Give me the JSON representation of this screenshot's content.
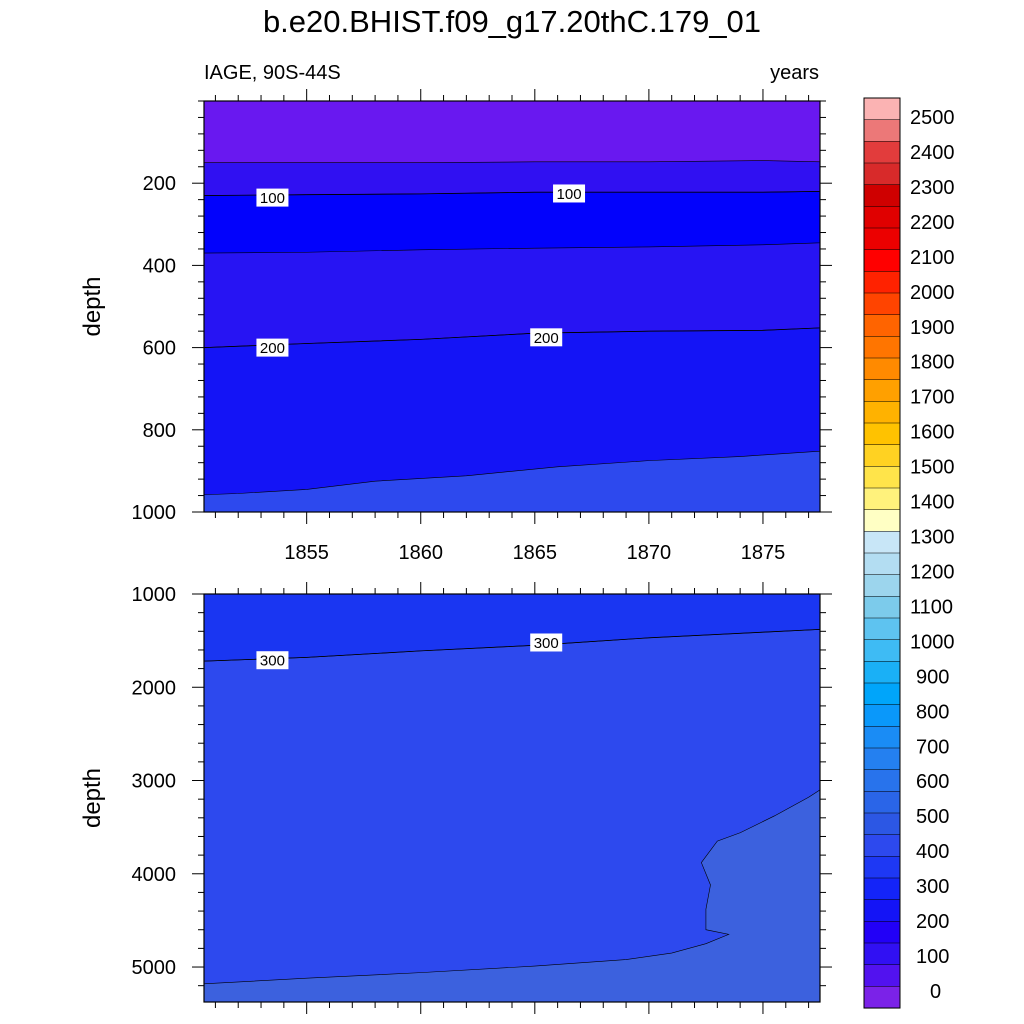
{
  "chart_data": {
    "type": "heatmap",
    "title": "b.e20.BHIST.f09_g17.20thC.179_01",
    "subtitle_left": "IAGE, 90S-44S",
    "subtitle_right": "years",
    "xlabel": "",
    "ylabel": "depth",
    "x_range": [
      1850.5,
      1877.5
    ],
    "x_ticks": [
      1855,
      1860,
      1865,
      1870,
      1875
    ],
    "x_tick_labels": [
      "1855",
      "1860",
      "1865",
      "1870",
      "1875"
    ],
    "panels": [
      {
        "name": "upper",
        "y_range": [
          0,
          1000
        ],
        "y_reversed": true,
        "y_ticks": [
          200,
          400,
          600,
          800,
          1000
        ],
        "y_tick_labels": [
          "200",
          "400",
          "600",
          "800",
          "1000"
        ],
        "background_color": "#2D49EE",
        "filled_bands": [
          {
            "color": "#1414F6",
            "top": [
              [
                1850.5,
                0
              ],
              [
                1877.5,
                0
              ]
            ],
            "bottom": [
              [
                1850.5,
                958
              ],
              [
                1852,
                955
              ],
              [
                1855,
                945
              ],
              [
                1858,
                925
              ],
              [
                1862,
                912
              ],
              [
                1866,
                890
              ],
              [
                1870,
                875
              ],
              [
                1874,
                865
              ],
              [
                1877.5,
                852
              ]
            ]
          },
          {
            "color": "#2714F3",
            "top": [
              [
                1850.5,
                0
              ],
              [
                1877.5,
                0
              ]
            ],
            "bottom": [
              [
                1850.5,
                600
              ],
              [
                1855,
                590
              ],
              [
                1860,
                580
              ],
              [
                1865,
                565
              ],
              [
                1870,
                560
              ],
              [
                1875,
                558
              ],
              [
                1877.5,
                552
              ]
            ]
          },
          {
            "color": "#0202FC",
            "top": [
              [
                1850.5,
                0
              ],
              [
                1877.5,
                0
              ]
            ],
            "bottom": [
              [
                1850.5,
                370
              ],
              [
                1855,
                368
              ],
              [
                1860,
                362
              ],
              [
                1865,
                358
              ],
              [
                1870,
                355
              ],
              [
                1875,
                350
              ],
              [
                1877.5,
                345
              ]
            ]
          },
          {
            "color": "#3010F2",
            "top": [
              [
                1850.5,
                0
              ],
              [
                1877.5,
                0
              ]
            ],
            "bottom": [
              [
                1850.5,
                230
              ],
              [
                1855,
                228
              ],
              [
                1860,
                226
              ],
              [
                1865,
                222
              ],
              [
                1870,
                222
              ],
              [
                1875,
                222
              ],
              [
                1877.5,
                220
              ]
            ]
          },
          {
            "color": "#6918F0",
            "top": [
              [
                1850.5,
                0
              ],
              [
                1877.5,
                0
              ]
            ],
            "bottom": [
              [
                1850.5,
                150
              ],
              [
                1855,
                150
              ],
              [
                1860,
                150
              ],
              [
                1865,
                148
              ],
              [
                1870,
                148
              ],
              [
                1875,
                145
              ],
              [
                1877.5,
                148
              ]
            ]
          }
        ],
        "contours": [
          {
            "value": 100,
            "label": "100",
            "points": [
              [
                1850.5,
                230
              ],
              [
                1855,
                228
              ],
              [
                1860,
                226
              ],
              [
                1865,
                222
              ],
              [
                1870,
                222
              ],
              [
                1875,
                222
              ],
              [
                1877.5,
                220
              ]
            ],
            "label_at": [
              [
                1853.5,
                235
              ],
              [
                1866.5,
                225
              ]
            ]
          },
          {
            "value": 200,
            "label": "200",
            "points": [
              [
                1850.5,
                600
              ],
              [
                1855,
                590
              ],
              [
                1860,
                580
              ],
              [
                1865,
                565
              ],
              [
                1870,
                560
              ],
              [
                1875,
                558
              ],
              [
                1877.5,
                552
              ]
            ],
            "label_at": [
              [
                1853.5,
                600
              ],
              [
                1865.5,
                575
              ]
            ]
          }
        ]
      },
      {
        "name": "lower",
        "y_range": [
          1000,
          5375
        ],
        "y_reversed": true,
        "y_ticks": [
          1000,
          2000,
          3000,
          4000,
          5000
        ],
        "y_tick_labels": [
          "1000",
          "2000",
          "3000",
          "4000",
          "5000"
        ],
        "background_color": "#3C61DE",
        "filled_bands": [
          {
            "color": "#2D49EE",
            "top": [
              [
                1850.5,
                1000
              ],
              [
                1877.5,
                1000
              ]
            ],
            "bottom": [
              [
                1850.5,
                5180
              ],
              [
                1855,
                5120
              ],
              [
                1860,
                5060
              ],
              [
                1865,
                4990
              ],
              [
                1869,
                4920
              ],
              [
                1871,
                4850
              ],
              [
                1872.5,
                4750
              ],
              [
                1873.5,
                4650
              ],
              [
                1872.5,
                4600
              ],
              [
                1872.5,
                4380
              ],
              [
                1872.7,
                4120
              ],
              [
                1872.3,
                3880
              ],
              [
                1873,
                3650
              ],
              [
                1874,
                3560
              ],
              [
                1875.5,
                3380
              ],
              [
                1877,
                3180
              ],
              [
                1877.5,
                3100
              ]
            ]
          },
          {
            "color": "#1A36F2",
            "top": [
              [
                1850.5,
                1000
              ],
              [
                1877.5,
                1000
              ]
            ],
            "bottom": [
              [
                1850.5,
                1720
              ],
              [
                1855,
                1680
              ],
              [
                1860,
                1610
              ],
              [
                1865,
                1550
              ],
              [
                1870,
                1470
              ],
              [
                1875,
                1410
              ],
              [
                1877.5,
                1380
              ]
            ]
          }
        ],
        "contours": [
          {
            "value": 300,
            "label": "300",
            "points": [
              [
                1850.5,
                1720
              ],
              [
                1855,
                1680
              ],
              [
                1860,
                1610
              ],
              [
                1865,
                1550
              ],
              [
                1870,
                1470
              ],
              [
                1875,
                1410
              ],
              [
                1877.5,
                1380
              ]
            ],
            "label_at": [
              [
                1853.5,
                1710
              ],
              [
                1865.5,
                1520
              ]
            ]
          }
        ]
      }
    ],
    "colorbar": {
      "labels": [
        "2500",
        "2400",
        "2300",
        "2200",
        "2100",
        "2000",
        "1900",
        "1800",
        "1700",
        "1600",
        "1500",
        "1400",
        "1300",
        "1200",
        "1100",
        "1000",
        "900",
        "800",
        "700",
        "600",
        "500",
        "400",
        "300",
        "200",
        "100",
        "0"
      ],
      "colors": [
        "#FBB3B3",
        "#EC7878",
        "#E23C3C",
        "#D82A2A",
        "#CF0000",
        "#E00000",
        "#EC0000",
        "#FF0000",
        "#FF2200",
        "#FF4400",
        "#FF6400",
        "#FF7500",
        "#FF8A00",
        "#FFA000",
        "#FFB200",
        "#FFC200",
        "#FFD222",
        "#FFE44A",
        "#FFF27C",
        "#FFFFC4",
        "#C8E6F7",
        "#B3DDF2",
        "#9CD5ED",
        "#7CCBEB",
        "#5EC3F0",
        "#3EBBF4",
        "#1AB0F6",
        "#00A5FA",
        "#0A98FA",
        "#1A8CF5",
        "#2480F0",
        "#2873EC",
        "#2A65E8",
        "#2C57E4",
        "#2D49EE",
        "#1E38F4",
        "#1424F8",
        "#1414F6",
        "#2200F7",
        "#3110F3",
        "#5212EF",
        "#7B22E8"
      ]
    }
  }
}
